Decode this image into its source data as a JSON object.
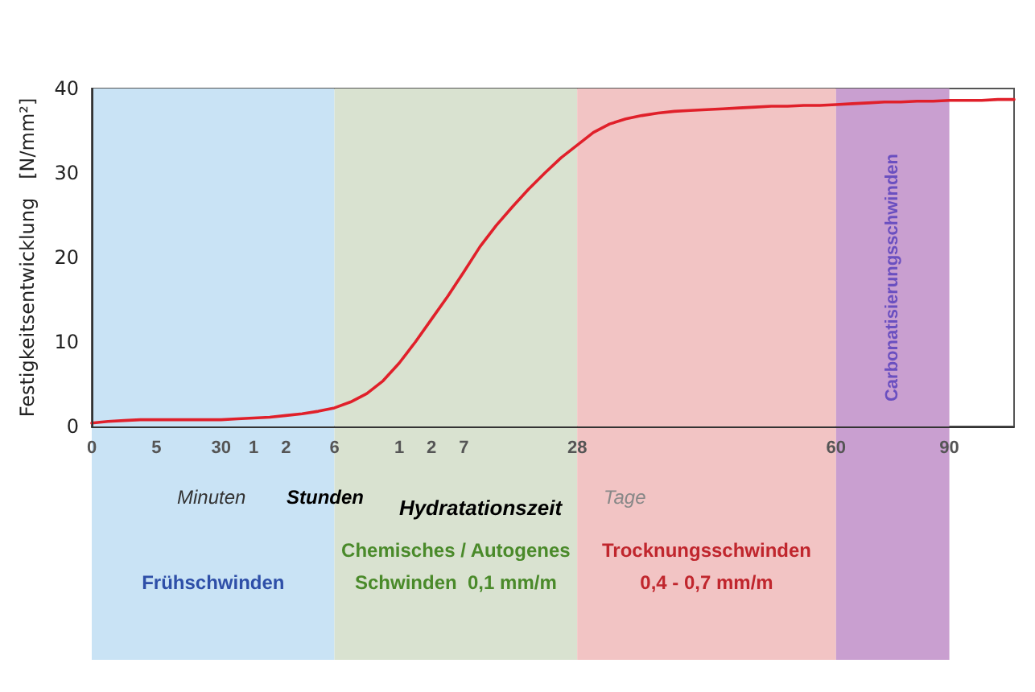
{
  "chart_data": {
    "type": "line",
    "xlabel": "Hydratationszeit",
    "ylabel": "Festigkeitsentwicklung   [N/mm²]",
    "categories": [
      "0",
      null,
      null,
      null,
      "5",
      null,
      null,
      null,
      "30",
      null,
      "1",
      null,
      "2",
      null,
      null,
      "6",
      null,
      null,
      null,
      "1",
      null,
      "2",
      null,
      "7",
      null,
      null,
      null,
      null,
      null,
      null,
      "28",
      null,
      null,
      null,
      null,
      null,
      null,
      null,
      null,
      null,
      null,
      null,
      null,
      null,
      null,
      null,
      "60",
      null,
      null,
      null,
      null,
      null,
      null,
      "90",
      null,
      null,
      null,
      null
    ],
    "series": [
      {
        "color": "#e0202a",
        "values": [
          0.4,
          0.6,
          0.7,
          0.8,
          0.8,
          0.8,
          0.8,
          0.8,
          0.8,
          0.9,
          1,
          1.1,
          1.3,
          1.5,
          1.8,
          2.2,
          2.9,
          3.9,
          5.4,
          7.5,
          10,
          12.7,
          15.4,
          18.3,
          21.3,
          23.8,
          26,
          28.1,
          30,
          31.8,
          33.3,
          34.8,
          35.8,
          36.4,
          36.8,
          37.1,
          37.3,
          37.4,
          37.5,
          37.6,
          37.7,
          37.8,
          37.9,
          37.9,
          38,
          38,
          38.1,
          38.2,
          38.3,
          38.4,
          38.4,
          38.5,
          38.5,
          38.6,
          38.6,
          38.6,
          38.7,
          38.7
        ]
      }
    ],
    "ylim": [
      0,
      40
    ],
    "yticks": [
      0,
      10,
      20,
      30,
      40
    ],
    "grid": false,
    "marker": "none",
    "line_style": "solid",
    "bands": [
      {
        "axis": "x",
        "from": "0",
        "to": "6",
        "label": "Frühschwinden",
        "color": "#c9e3f5"
      },
      {
        "axis": "x",
        "from": "6",
        "to": "28",
        "label": "Chemisches / Autogenes\nSchwinden  0,1 mm/m",
        "color": "#d9e2d0"
      },
      {
        "axis": "x",
        "from": "28",
        "to": "60",
        "label": "Trocknungsschwinden\n0,4 - 0,7 mm/m",
        "color": "#f2c4c4"
      },
      {
        "axis": "x",
        "from": "60",
        "to": "90",
        "label": "Carbonatisierungsschwinden",
        "color": "#c99fd0"
      }
    ],
    "annotations": [
      "Minuten",
      "Stunden",
      "Tage"
    ]
  }
}
